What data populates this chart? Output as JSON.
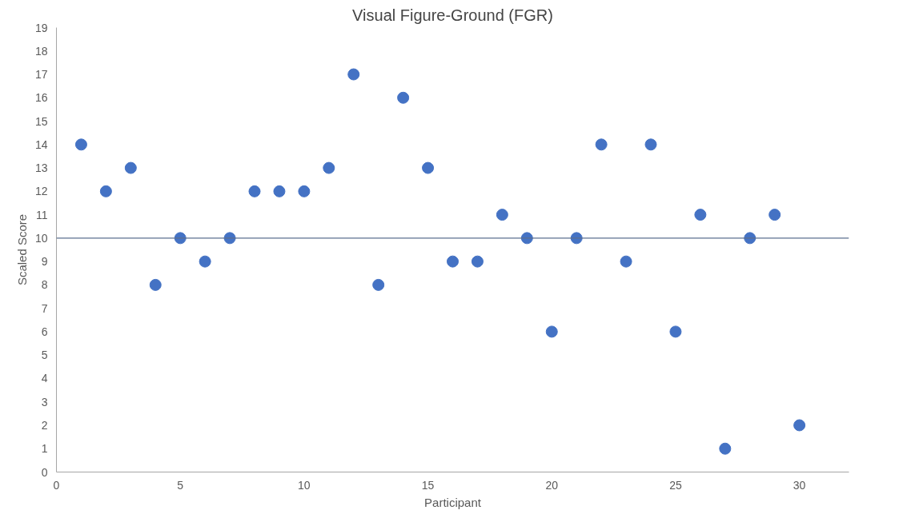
{
  "chart_data": {
    "type": "scatter",
    "title": "Visual Figure-Ground (FGR)",
    "xlabel": "Participant",
    "ylabel": "Scaled Score",
    "x": [
      1,
      2,
      3,
      4,
      5,
      6,
      7,
      8,
      9,
      10,
      11,
      12,
      13,
      14,
      15,
      16,
      17,
      18,
      19,
      20,
      21,
      22,
      23,
      24,
      25,
      26,
      27,
      28,
      29,
      30
    ],
    "series": [
      {
        "color": "#4472c4",
        "values": [
          14,
          12,
          13,
          8,
          10,
          9,
          10,
          12,
          12,
          12,
          13,
          17,
          8,
          16,
          13,
          9,
          9,
          11,
          10,
          6,
          10,
          14,
          9,
          14,
          6,
          11,
          1,
          10,
          11,
          2
        ]
      }
    ],
    "marker": "circle",
    "xlim": [
      0,
      32
    ],
    "xticks": [
      0,
      5,
      10,
      15,
      20,
      25,
      30
    ],
    "ylim": [
      0,
      19
    ],
    "yticks": [
      0,
      1,
      2,
      3,
      4,
      5,
      6,
      7,
      8,
      9,
      10,
      11,
      12,
      13,
      14,
      15,
      16,
      17,
      18,
      19
    ],
    "ref_lines": [
      {
        "axis": "y",
        "value": 10,
        "color": "#5b6f8f"
      }
    ],
    "grid": false
  }
}
